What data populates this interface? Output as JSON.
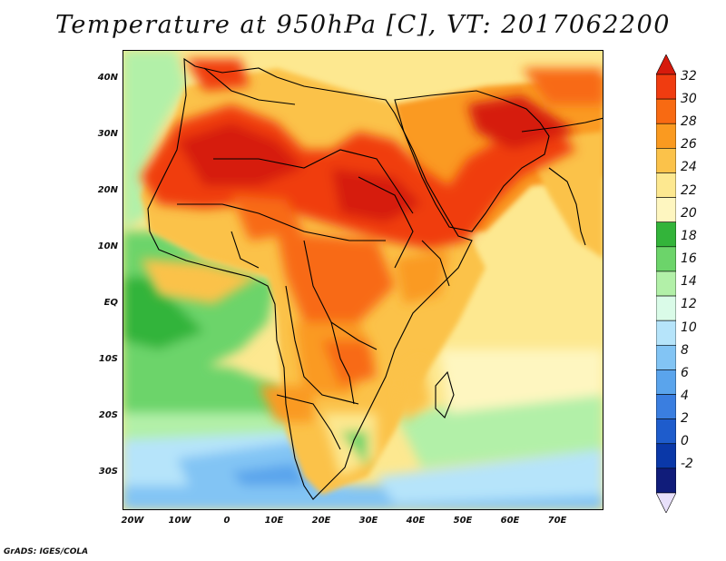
{
  "title": "Temperature at 950hPa [C], VT: 2017062200",
  "credit": "GrADS: IGES/COLA",
  "lat_labels": [
    "40N",
    "30N",
    "20N",
    "10N",
    "EQ",
    "10S",
    "20S",
    "30S"
  ],
  "lon_labels": [
    "20W",
    "10W",
    "0",
    "10E",
    "20E",
    "30E",
    "40E",
    "50E",
    "60E",
    "70E"
  ],
  "colorbar": {
    "labels": [
      "32",
      "30",
      "28",
      "26",
      "24",
      "22",
      "20",
      "18",
      "16",
      "14",
      "12",
      "10",
      "8",
      "6",
      "4",
      "2",
      "0",
      "-2"
    ],
    "colors": [
      "#d61a0c",
      "#f03c10",
      "#f86a12",
      "#fa9a20",
      "#fbc24a",
      "#fde890",
      "#fef6c0",
      "#33b43a",
      "#6cd46a",
      "#b2f0a8",
      "#dafbe8",
      "#b6e4fa",
      "#82c4f4",
      "#5aa4ec",
      "#3a7ee0",
      "#1e5ccc",
      "#0a38a8",
      "#101c7a",
      "#e8e0fa"
    ]
  }
}
